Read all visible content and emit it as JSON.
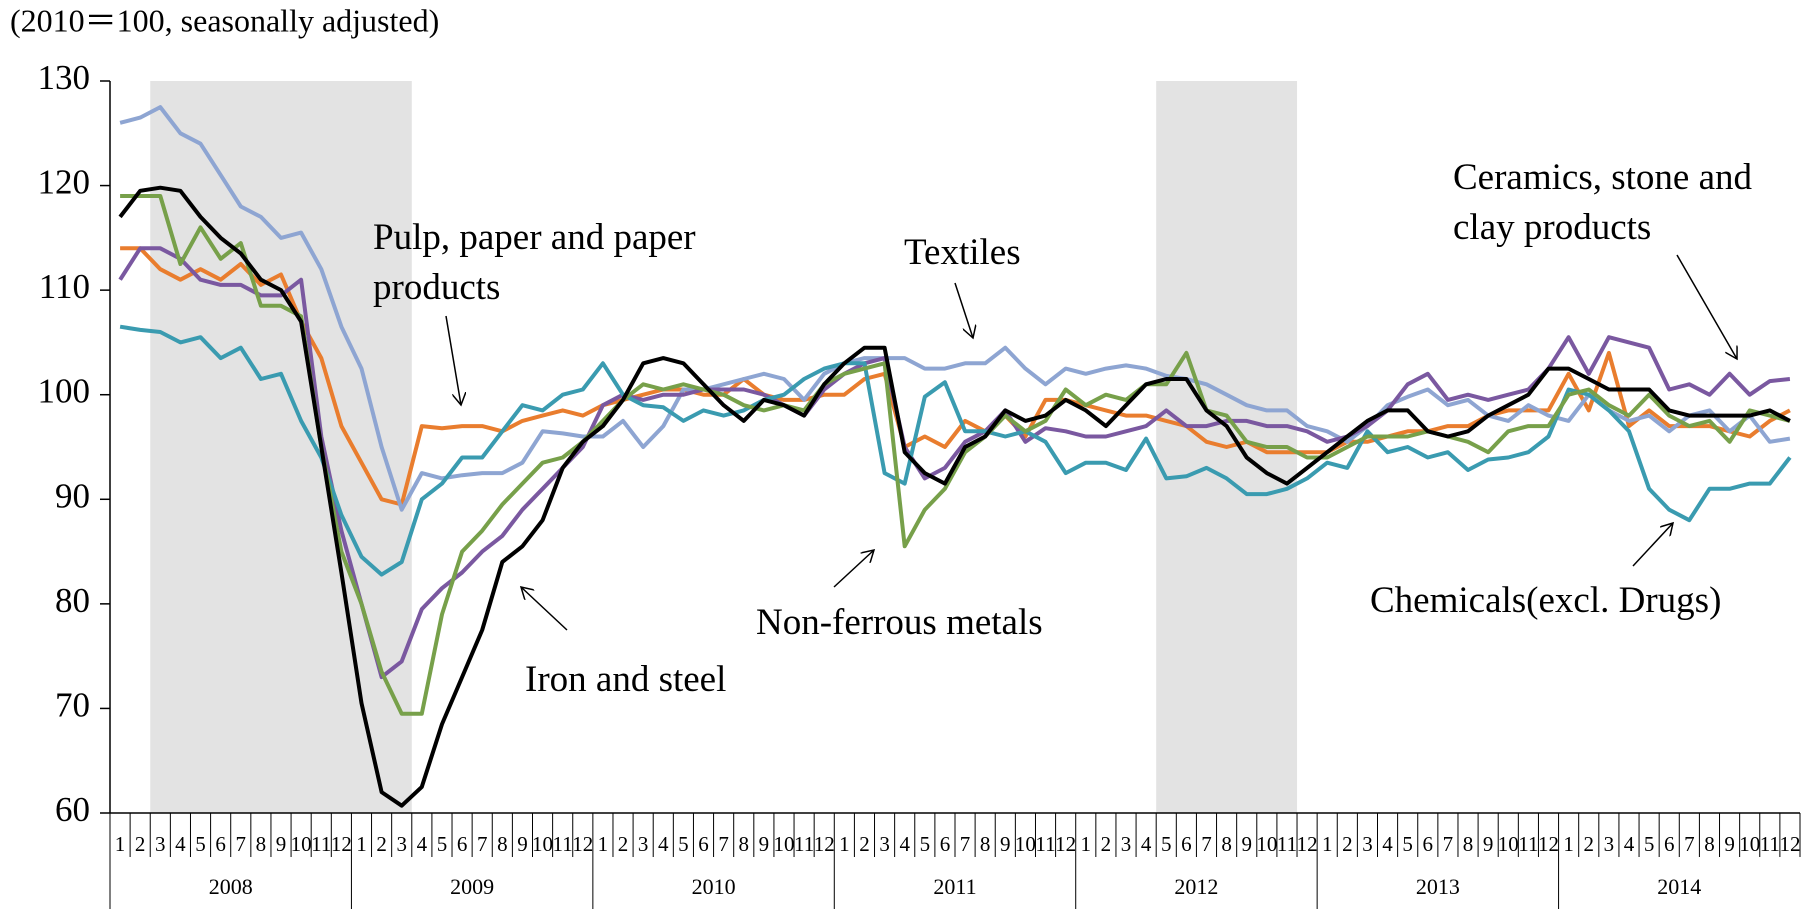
{
  "chart_data": {
    "type": "line",
    "title": "(2010＝100, seasonally adjusted)",
    "categories": [
      "1",
      "2",
      "3",
      "4",
      "5",
      "6",
      "7",
      "8",
      "9",
      "10",
      "11",
      "12",
      "1",
      "2",
      "3",
      "4",
      "5",
      "6",
      "7",
      "8",
      "9",
      "10",
      "11",
      "12",
      "1",
      "2",
      "3",
      "4",
      "5",
      "6",
      "7",
      "8",
      "9",
      "10",
      "11",
      "12",
      "1",
      "2",
      "3",
      "4",
      "5",
      "6",
      "7",
      "8",
      "9",
      "10",
      "11",
      "12",
      "1",
      "2",
      "3",
      "4",
      "5",
      "6",
      "7",
      "8",
      "9",
      "10",
      "11",
      "12",
      "1",
      "2",
      "3",
      "4",
      "5",
      "6",
      "7",
      "8",
      "9",
      "10",
      "11",
      "12",
      "1",
      "2",
      "3",
      "4",
      "5",
      "6",
      "7",
      "8",
      "9",
      "10",
      "11",
      "12"
    ],
    "years": [
      "2008",
      "2009",
      "2010",
      "2011",
      "2012",
      "2013",
      "2014"
    ],
    "shaded_ranges": [
      [
        2,
        14
      ],
      [
        52,
        58
      ]
    ],
    "ylim": [
      60,
      130
    ],
    "yticks": [
      60,
      70,
      80,
      90,
      100,
      110,
      120,
      130
    ],
    "series": [
      {
        "name": "Iron and steel",
        "color": "#000000",
        "values": [
          117,
          119.5,
          119.8,
          119.5,
          117,
          115,
          113.5,
          111,
          110,
          107,
          95,
          83,
          70.5,
          62,
          60.7,
          62.5,
          68.5,
          73,
          77.5,
          84,
          85.5,
          88,
          93,
          95.5,
          97,
          99.5,
          103,
          103.5,
          103,
          101,
          99,
          97.5,
          99.5,
          99,
          98,
          101,
          103,
          104.5,
          104.5,
          94.5,
          92.5,
          91.5,
          95,
          96,
          98.5,
          97.5,
          98,
          99.5,
          98.5,
          97,
          99,
          101,
          101.5,
          101.5,
          98.5,
          97,
          94,
          92.5,
          91.5,
          93,
          94.5,
          96,
          97.5,
          98.5,
          98.5,
          96.5,
          96,
          96.5,
          98,
          99,
          100,
          102.5,
          102.5,
          101.5,
          100.5,
          100.5,
          100.5,
          98.5,
          98,
          98,
          98,
          98,
          98.5,
          97.5
        ]
      },
      {
        "name": "Non-ferrous metals",
        "color": "#77a04a",
        "values": [
          119,
          119,
          119,
          112.5,
          116,
          113,
          114.5,
          108.5,
          108.5,
          107.5,
          95,
          85,
          80,
          73.5,
          69.5,
          69.5,
          79,
          85,
          87,
          89.5,
          91.5,
          93.5,
          94,
          95.5,
          97.5,
          99.5,
          101,
          100.5,
          101,
          100.5,
          100,
          99,
          98.5,
          99,
          98.5,
          101,
          102,
          102.5,
          103,
          85.5,
          89,
          91,
          94.5,
          96,
          98,
          96.5,
          97.5,
          100.5,
          99,
          100,
          99.5,
          101,
          101,
          104,
          98.5,
          98,
          95.5,
          95,
          95,
          94,
          94,
          95,
          96,
          96,
          96,
          96.5,
          96,
          95.5,
          94.5,
          96.5,
          97,
          97,
          100,
          100.5,
          99,
          98,
          100,
          98,
          97,
          97.5,
          95.5,
          98.5,
          98,
          97.5
        ]
      },
      {
        "name": "Pulp, paper and paper products",
        "color": "#e97d2e",
        "values": [
          114,
          114,
          112,
          111,
          112,
          111,
          112.5,
          110.5,
          111.5,
          107,
          103.5,
          97,
          93.5,
          90,
          89.5,
          97,
          96.8,
          97,
          97,
          96.5,
          97.5,
          98,
          98.5,
          98,
          99,
          99.5,
          100,
          100.5,
          100.5,
          100,
          100,
          101.5,
          100,
          99.5,
          99.5,
          100,
          100,
          101.5,
          102,
          95,
          96,
          95,
          97.5,
          96.5,
          98,
          96,
          99.5,
          99.5,
          99,
          98.5,
          98,
          98,
          97.5,
          97,
          95.5,
          95,
          95.5,
          94.5,
          94.5,
          94.5,
          94.5,
          95.5,
          95.5,
          96,
          96.5,
          96.5,
          97,
          97,
          98,
          98.5,
          98.5,
          98.5,
          102,
          98.5,
          104,
          97,
          98.5,
          97,
          97,
          97,
          96.5,
          96,
          97.5,
          98.5
        ]
      },
      {
        "name": "Textiles",
        "color": "#8ea5d2",
        "values": [
          126,
          126.5,
          127.5,
          125,
          124,
          121,
          118,
          117,
          115,
          115.5,
          112,
          106.5,
          102.5,
          95,
          89,
          92.5,
          92,
          92.3,
          92.5,
          92.5,
          93.5,
          96.5,
          96.3,
          96,
          96,
          97.5,
          95,
          97,
          100.5,
          100.5,
          101,
          101.5,
          102,
          101.5,
          99.5,
          102,
          103,
          103.5,
          103.5,
          103.5,
          102.5,
          102.5,
          103,
          103,
          104.5,
          102.5,
          101,
          102.5,
          102,
          102.5,
          102.8,
          102.5,
          101.8,
          101.5,
          101,
          100,
          99,
          98.5,
          98.5,
          97,
          96.5,
          95.5,
          97,
          99,
          99.8,
          100.5,
          99,
          99.5,
          98,
          97.5,
          99,
          98,
          97.5,
          100,
          98.5,
          97.5,
          98,
          96.5,
          98,
          98.5,
          96.5,
          98,
          95.5,
          95.8
        ]
      },
      {
        "name": "Ceramics, stone and clay products",
        "color": "#7a58a0",
        "values": [
          111,
          114,
          114,
          113,
          111,
          110.5,
          110.5,
          109.5,
          109.5,
          111,
          96,
          87,
          80,
          73,
          74.5,
          79.5,
          81.5,
          83,
          85,
          86.5,
          89,
          91,
          93,
          95,
          99,
          100,
          99.5,
          100,
          100,
          100.5,
          100.5,
          100.5,
          100,
          99,
          98,
          100.5,
          102,
          103,
          103.5,
          95,
          92,
          93,
          95.5,
          96.5,
          98.5,
          95.5,
          96.8,
          96.5,
          96,
          96,
          96.5,
          97,
          98.5,
          97,
          97,
          97.5,
          97.5,
          97,
          97,
          96.5,
          95.5,
          96,
          97,
          98.5,
          101,
          102,
          99.5,
          100,
          99.5,
          100,
          100.5,
          102.5,
          105.5,
          102,
          105.5,
          105,
          104.5,
          100.5,
          101,
          100,
          102,
          100,
          101.3,
          101.5
        ]
      },
      {
        "name": "Chemicals(excl. Drugs)",
        "color": "#3a9bb0",
        "values": [
          106.5,
          106.2,
          106,
          105,
          105.5,
          103.5,
          104.5,
          101.5,
          102,
          97.5,
          94,
          88.5,
          84.5,
          82.8,
          84,
          90,
          91.5,
          94,
          94,
          96.5,
          99,
          98.5,
          100,
          100.5,
          103,
          100,
          99,
          98.8,
          97.5,
          98.5,
          98,
          98.5,
          99.5,
          100,
          101.5,
          102.5,
          103,
          103,
          92.5,
          91.5,
          99.8,
          101.2,
          96.5,
          96.5,
          96,
          96.5,
          95.5,
          92.5,
          93.5,
          93.5,
          92.8,
          95.8,
          92,
          92.2,
          93,
          92,
          90.5,
          90.5,
          91,
          92,
          93.5,
          93,
          96.5,
          94.5,
          95,
          94,
          94.5,
          92.8,
          93.8,
          94,
          94.5,
          96,
          100.5,
          100,
          98.5,
          96.5,
          91,
          89,
          88,
          91,
          91,
          91.5,
          91.5,
          94
        ]
      }
    ]
  }
}
